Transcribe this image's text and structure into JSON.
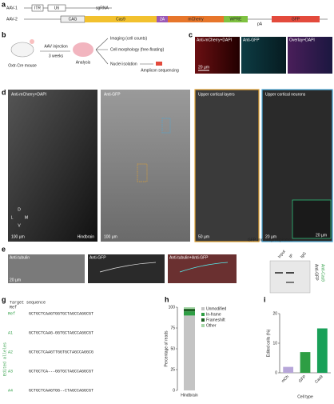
{
  "panel_labels": [
    "a",
    "b",
    "c",
    "d",
    "e",
    "f",
    "g",
    "h",
    "i"
  ],
  "construct": {
    "rows": [
      "AAV-1",
      "AAV-2"
    ],
    "elements": [
      "ITR",
      "U6",
      "sgRNA",
      "CAG",
      "Cas9",
      "2A",
      "mCherry",
      "WPRE",
      "GFP",
      "pA"
    ]
  },
  "schematic": {
    "mouse": "Oxtr-Cre mouse",
    "injection": "AAV injection",
    "time": "3 weeks",
    "analysis": "Analysis",
    "outcomes": [
      "Imaging (cell counts)",
      "Cell morphology (free-floating)",
      "Nuclei isolation",
      "Amplicon sequencing"
    ]
  },
  "panel_c": {
    "titles": [
      "Anti-mCherry+DAPI",
      "Anti-GFP",
      "Overlay+DAPI"
    ],
    "scale": "20 µm"
  },
  "panel_d": {
    "titles": [
      "Anti-mCherry+DAPI",
      "Anti-GFP",
      "Upper cortical layers",
      "Upper cortical neurons"
    ],
    "scales": [
      "100 µm",
      "100 µm",
      "50 µm",
      "20 µm",
      "20 µm"
    ],
    "orientation": [
      "D",
      "V",
      "L",
      "M"
    ],
    "region": "Hindbrain"
  },
  "panel_e": {
    "titles": [
      "Anti-tubulin",
      "Anti-GFP",
      "Anti-tubulin+Anti-GFP"
    ],
    "scale": "20 µm"
  },
  "panel_f": {
    "title": "GFP immunoprecipitation",
    "lanes": [
      "Input",
      "IP",
      "IgG"
    ],
    "side": [
      "Anti-GFP",
      "Anti-Cas9"
    ]
  },
  "panel_g": {
    "header": "Target sequence",
    "ref": "Ref",
    "rows": [
      "Ref",
      "A1",
      "A2",
      "A3",
      "A4"
    ],
    "side": "Edited alleles",
    "seqs": [
      "GCTGCTCAAGTGGTGCTAGCCAGGCGT",
      "GCTGCTCAAG-GGTGCTAGCCAGGCGT",
      "GCTGCTCAAGTTGGTGCTAGCCAGGCG",
      "GCTGCTCA---GGTGCTAGCCAGGCGT",
      "GCTGCTCAAGTGG--CTAGCCAGGCGT"
    ]
  },
  "chart_h": {
    "type": "bar",
    "ylabel": "Percentage of reads",
    "category": "Hindbrain",
    "ylim": [
      0,
      100
    ],
    "yticks": [
      0,
      25,
      50,
      75,
      100
    ],
    "series": [
      {
        "name": "Unmodified",
        "color": "#c4c4c4",
        "value": 90
      },
      {
        "name": "In-frame",
        "color": "#2e9e44",
        "value": 5
      },
      {
        "name": "Frameshift",
        "color": "#1b5e20",
        "value": 3
      },
      {
        "name": "Other",
        "color": "#a5d6a7",
        "value": 2
      }
    ]
  },
  "chart_i": {
    "type": "bar",
    "ylabel": "Edited cells (%)",
    "xlabel": "Cell type",
    "categories": [
      "mCh",
      "GFP",
      "Cas9"
    ],
    "values": [
      2,
      7,
      15
    ],
    "colors": [
      "#b7a6d9",
      "#2e9e44",
      "#18a058"
    ],
    "ylim": [
      0,
      20
    ],
    "yticks": [
      0,
      10,
      20
    ]
  }
}
